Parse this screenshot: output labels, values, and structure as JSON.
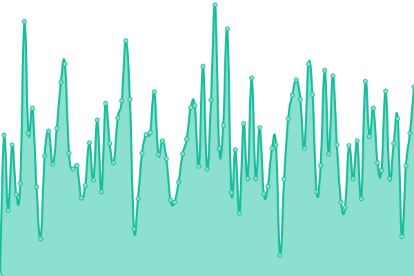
{
  "chart_data": {
    "type": "area",
    "title": "",
    "xlabel": "",
    "ylabel": "",
    "ylim": [
      0,
      400
    ],
    "grid": false,
    "legend": "none",
    "line_color": "#1abc9c",
    "fill_color": "#8be0d0",
    "point_fill": "#8be0d0",
    "values": [
      2,
      204,
      95,
      190,
      118,
      134,
      369,
      207,
      243,
      129,
      54,
      174,
      210,
      162,
      214,
      281,
      307,
      178,
      155,
      160,
      113,
      131,
      193,
      139,
      226,
      122,
      250,
      192,
      164,
      229,
      254,
      341,
      256,
      68,
      112,
      178,
      205,
      208,
      267,
      176,
      196,
      170,
      110,
      107,
      136,
      177,
      198,
      244,
      247,
      159,
      304,
      155,
      255,
      393,
      185,
      218,
      358,
      121,
      183,
      91,
      221,
      141,
      287,
      141,
      215,
      119,
      130,
      185,
      190,
      30,
      140,
      228,
      262,
      284,
      256,
      185,
      307,
      263,
      122,
      160,
      298,
      177,
      290,
      190,
      107,
      99,
      189,
      141,
      196,
      112,
      282,
      202,
      243,
      164,
      153,
      268,
      141,
      192,
      228,
      57,
      160,
      207,
      274
    ]
  }
}
